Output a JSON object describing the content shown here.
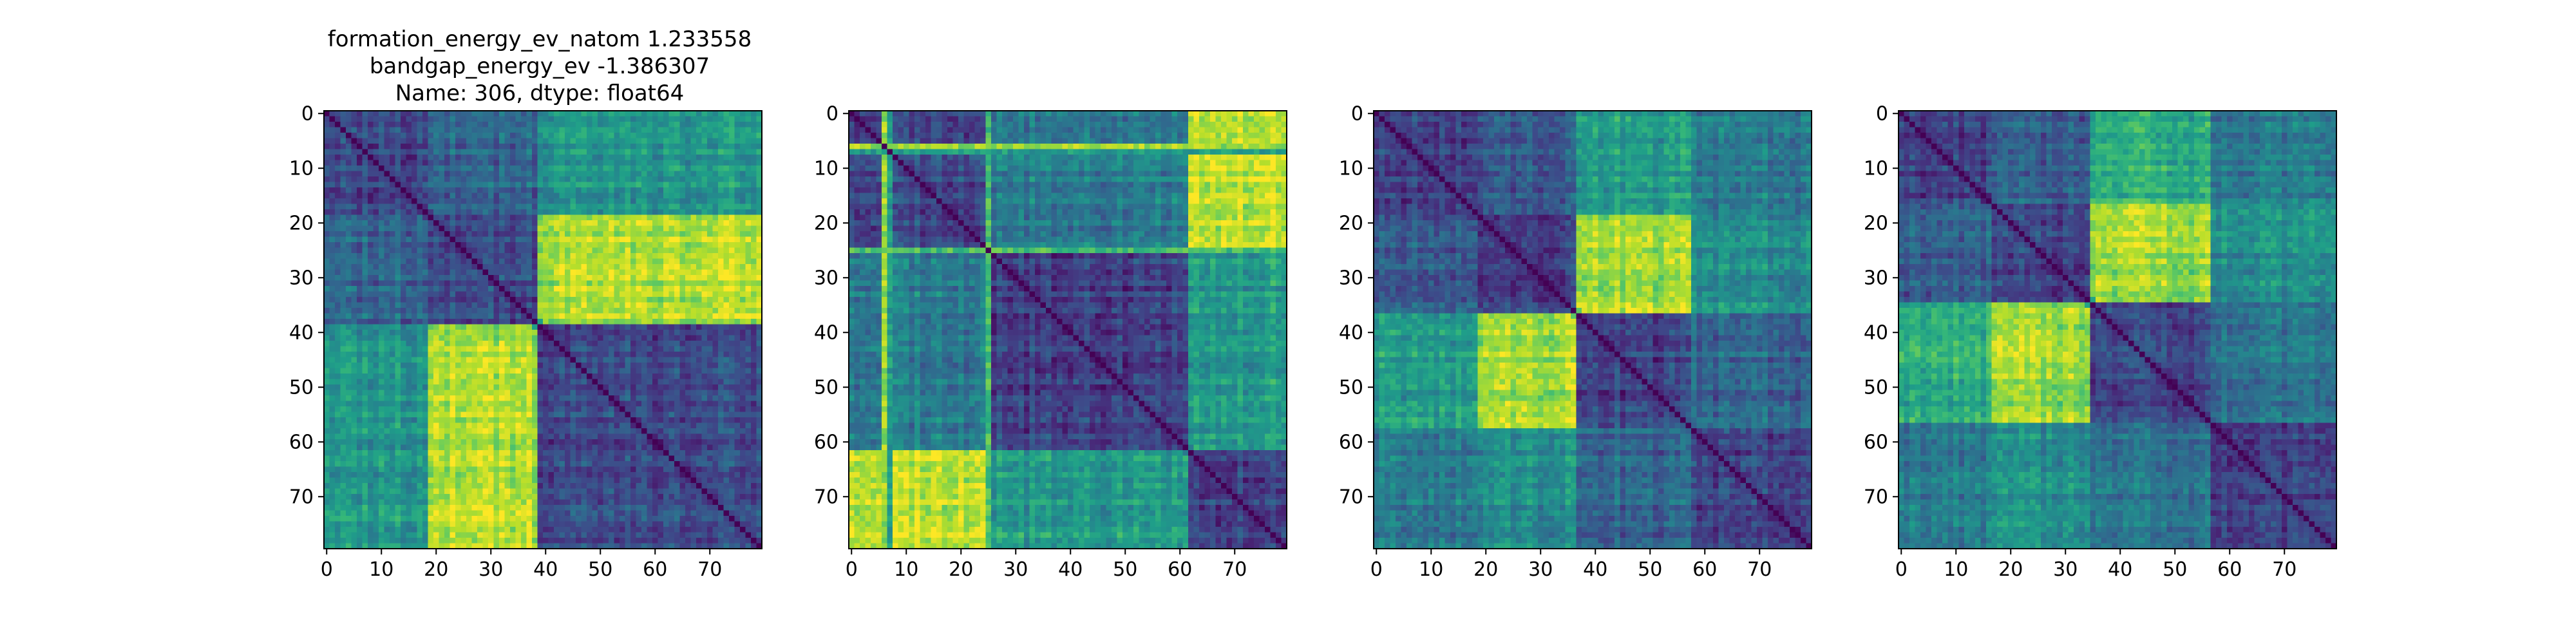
{
  "figure": {
    "title_lines": [
      "formation_energy_ev_natom    1.233558",
      "bandgap_energy_ev           -1.386307",
      "Name: 306, dtype: float64"
    ]
  },
  "colors": {
    "colormap": "viridis",
    "axes_edge": "#000000",
    "background": "#ffffff"
  },
  "chart_data": [
    {
      "type": "heatmap",
      "panel": "distance-matrix-1",
      "title": "formation_energy_ev_natom 1.233558 / bandgap_energy_ev -1.386307 / Name: 306, dtype: float64",
      "xlabel": "",
      "ylabel": "",
      "shape": [
        80,
        80
      ],
      "xlim": [
        0,
        79
      ],
      "ylim": [
        79,
        0
      ],
      "x_ticks": [
        0,
        10,
        20,
        30,
        40,
        50,
        60,
        70
      ],
      "y_ticks": [
        0,
        10,
        20,
        30,
        40,
        50,
        60,
        70
      ],
      "colormap": "viridis",
      "diagonal_value": 0,
      "block_boundaries": [
        0,
        19,
        39,
        80
      ],
      "block_means": [
        [
          0.22,
          0.32,
          0.52
        ],
        [
          0.32,
          0.22,
          0.88
        ],
        [
          0.52,
          0.88,
          0.22
        ]
      ],
      "noise": 0.08
    },
    {
      "type": "heatmap",
      "panel": "distance-matrix-2",
      "xlabel": "",
      "ylabel": "",
      "shape": [
        80,
        80
      ],
      "xlim": [
        0,
        79
      ],
      "ylim": [
        79,
        0
      ],
      "x_ticks": [
        0,
        10,
        20,
        30,
        40,
        50,
        60,
        70
      ],
      "y_ticks": [
        0,
        10,
        20,
        30,
        40,
        50,
        60,
        70
      ],
      "colormap": "viridis",
      "diagonal_value": 0,
      "block_boundaries": [
        0,
        25,
        62,
        80
      ],
      "block_means": [
        [
          0.22,
          0.42,
          0.92
        ],
        [
          0.42,
          0.2,
          0.55
        ],
        [
          0.92,
          0.55,
          0.2
        ]
      ],
      "highlight_rows": [
        {
          "index": 6,
          "value": 0.85
        },
        {
          "index": 7,
          "value": 0.55
        },
        {
          "index": 25,
          "value": 0.7
        }
      ],
      "noise": 0.08
    },
    {
      "type": "heatmap",
      "panel": "distance-matrix-3",
      "xlabel": "",
      "ylabel": "",
      "shape": [
        80,
        80
      ],
      "xlim": [
        0,
        79
      ],
      "ylim": [
        79,
        0
      ],
      "x_ticks": [
        0,
        10,
        20,
        30,
        40,
        50,
        60,
        70
      ],
      "y_ticks": [
        0,
        10,
        20,
        30,
        40,
        50,
        60,
        70
      ],
      "colormap": "viridis",
      "diagonal_value": 0,
      "block_boundaries": [
        0,
        19,
        37,
        58,
        80
      ],
      "block_means": [
        [
          0.2,
          0.3,
          0.55,
          0.42
        ],
        [
          0.3,
          0.2,
          0.88,
          0.5
        ],
        [
          0.55,
          0.88,
          0.2,
          0.32
        ],
        [
          0.42,
          0.5,
          0.32,
          0.2
        ]
      ],
      "noise": 0.08
    },
    {
      "type": "heatmap",
      "panel": "distance-matrix-4",
      "xlabel": "",
      "ylabel": "",
      "shape": [
        80,
        80
      ],
      "xlim": [
        0,
        79
      ],
      "ylim": [
        79,
        0
      ],
      "x_ticks": [
        0,
        10,
        20,
        30,
        40,
        50,
        60,
        70
      ],
      "y_ticks": [
        0,
        10,
        20,
        30,
        40,
        50,
        60,
        70
      ],
      "colormap": "viridis",
      "diagonal_value": 0,
      "block_boundaries": [
        0,
        17,
        35,
        57,
        80
      ],
      "block_means": [
        [
          0.2,
          0.3,
          0.62,
          0.42
        ],
        [
          0.3,
          0.2,
          0.85,
          0.5
        ],
        [
          0.62,
          0.85,
          0.2,
          0.38
        ],
        [
          0.42,
          0.5,
          0.38,
          0.2
        ]
      ],
      "noise": 0.08
    }
  ]
}
